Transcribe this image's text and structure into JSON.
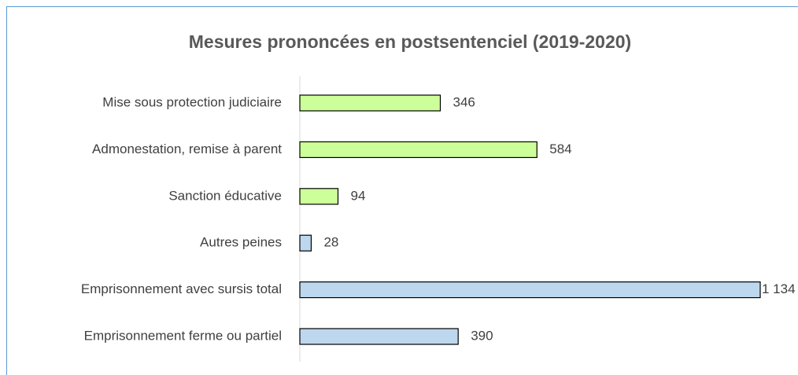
{
  "chart_data": {
    "type": "bar",
    "orientation": "horizontal",
    "title": "Mesures prononcées en postsentenciel (2019-2020)",
    "categories": [
      "Mise sous protection judiciaire",
      "Admonestation, remise à parent",
      "Sanction éducative",
      "Autres peines",
      "Emprisonnement avec sursis total",
      "Emprisonnement ferme ou partiel"
    ],
    "values": [
      346,
      584,
      94,
      28,
      1134,
      390
    ],
    "value_labels": [
      "346",
      "584",
      "94",
      "28",
      "1 134",
      "390"
    ],
    "colors": [
      "#ccff99",
      "#ccff99",
      "#ccff99",
      "#bdd7ee",
      "#bdd7ee",
      "#bdd7ee"
    ]
  }
}
